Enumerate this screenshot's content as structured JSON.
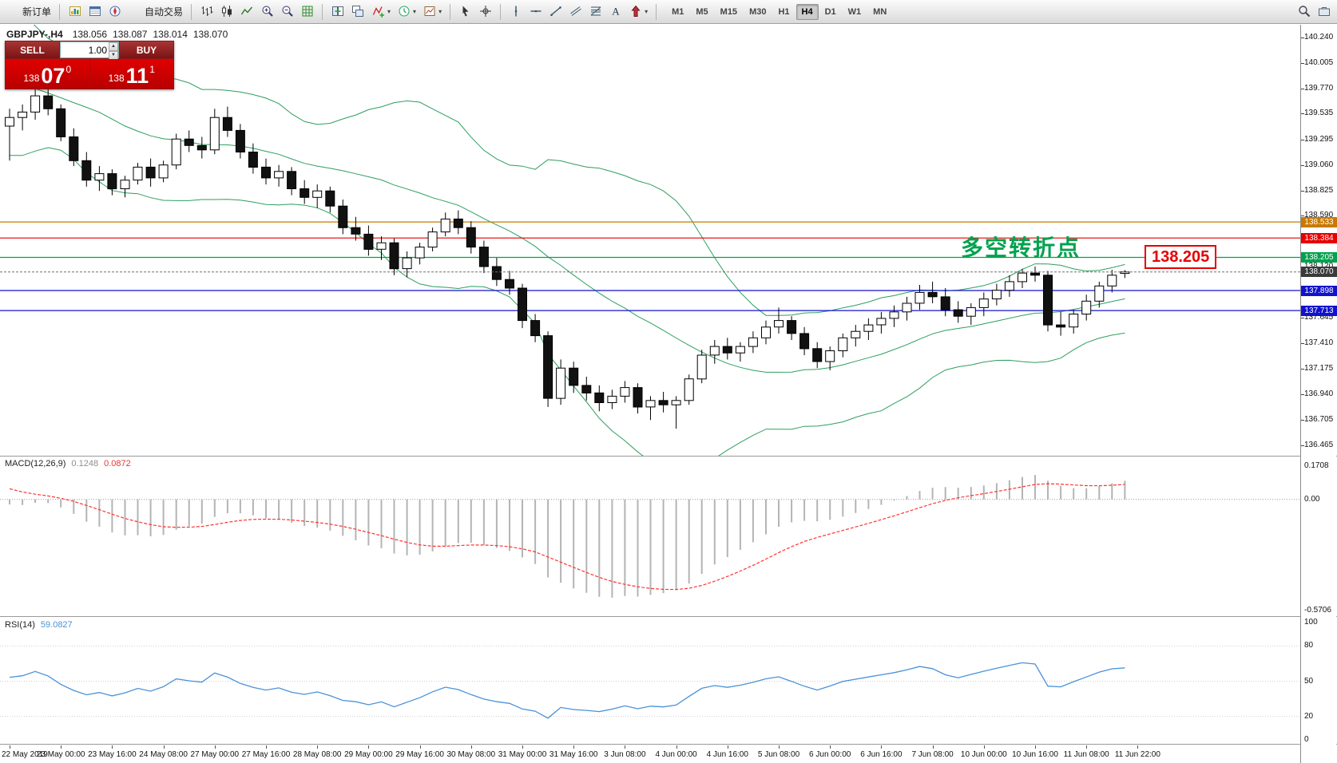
{
  "toolbar": {
    "new_order_label": "新订单",
    "autotrade_label": "自动交易",
    "left_icons": [
      "market-watch-icon",
      "data-window-icon",
      "navigator-icon"
    ],
    "chart_type_icons": [
      "bar-chart-icon",
      "candlestick-icon",
      "line-chart-icon"
    ],
    "zoom_icons": [
      "zoom-in-icon",
      "zoom-out-icon",
      "grid-icon"
    ],
    "window_icons": [
      "tile-windows-icon",
      "cascade-windows-icon"
    ],
    "dropdown_icons": [
      "indicators-icon",
      "periods-icon",
      "templates-icon"
    ],
    "cursor_icons": [
      "cursor-icon",
      "crosshair-icon"
    ],
    "draw_icons": [
      "vertical-line-icon",
      "horizontal-line-icon",
      "trendline-icon",
      "channel-icon",
      "fibonacci-icon",
      "text-icon",
      "arrows-icon"
    ],
    "timeframes": [
      "M1",
      "M5",
      "M15",
      "M30",
      "H1",
      "H4",
      "D1",
      "W1",
      "MN"
    ],
    "active_timeframe": "H4",
    "right_icons": [
      "search-icon",
      "toolbox-icon"
    ]
  },
  "symbol_info": {
    "name": "GBPJPY-,H4",
    "open": "138.056",
    "high": "138.087",
    "low": "138.014",
    "close": "138.070"
  },
  "trade_panel": {
    "sell_label": "SELL",
    "buy_label": "BUY",
    "volume": "1.00",
    "sell_price": {
      "prefix": "138",
      "big": "07",
      "sup": "0"
    },
    "buy_price": {
      "prefix": "138",
      "big": "11",
      "sup": "1"
    }
  },
  "annotation": {
    "text": "多空转折点",
    "color": "#00a24e"
  },
  "price_tag": {
    "text": "138.205"
  },
  "main_chart": {
    "price_ticks": [
      "140.240",
      "140.005",
      "139.770",
      "139.535",
      "139.295",
      "139.060",
      "138.825",
      "138.590",
      "138.355",
      "138.120",
      "137.885",
      "137.645",
      "137.410",
      "137.175",
      "136.940",
      "136.705",
      "136.465"
    ],
    "badges": [
      {
        "text": "138.533",
        "value": 138.533,
        "bg": "#c97a00"
      },
      {
        "text": "138.384",
        "value": 138.384,
        "bg": "#e60000"
      },
      {
        "text": "138.205",
        "value": 138.205,
        "bg": "#00a24e"
      },
      {
        "text": "138.070",
        "value": 138.07,
        "bg": "#3a3a3a"
      },
      {
        "text": "137.898",
        "value": 137.898,
        "bg": "#1212cc"
      },
      {
        "text": "137.713",
        "value": 137.713,
        "bg": "#1212cc"
      }
    ]
  },
  "macd": {
    "label": "MACD(12,26,9)",
    "main_value": "0.1248",
    "signal_value": "0.0872",
    "axis": [
      {
        "text": "0.1708",
        "value": 0.1708
      },
      {
        "text": "0.00",
        "value": 0
      },
      {
        "text": "-0.5706",
        "value": -0.5706
      }
    ]
  },
  "rsi": {
    "label": "RSI(14)",
    "value": "59.0827",
    "axis": [
      {
        "text": "100",
        "value": 100
      },
      {
        "text": "80",
        "value": 80
      },
      {
        "text": "50",
        "value": 50
      },
      {
        "text": "20",
        "value": 20
      },
      {
        "text": "0",
        "value": 0
      }
    ],
    "levels": [
      80,
      50,
      20
    ]
  },
  "chart_data": {
    "type": "candlestick",
    "symbol": "GBPJPY-",
    "timeframe": "H4",
    "ylim": [
      136.376,
      140.366
    ],
    "overlays": {
      "bollinger": {
        "period": 20,
        "deviation": 2,
        "color": "#2e9e5e"
      }
    },
    "macd_params": [
      12,
      26,
      9
    ],
    "rsi_period": 14,
    "hlines": [
      {
        "value": 138.533,
        "color": "#c97a00",
        "style": "solid"
      },
      {
        "value": 138.384,
        "color": "#e60000",
        "style": "solid"
      },
      {
        "value": 138.205,
        "color": "#00a24e",
        "style": "solid"
      },
      {
        "value": 137.898,
        "color": "#1212cc",
        "style": "solid"
      },
      {
        "value": 137.713,
        "color": "#1212cc",
        "style": "solid"
      }
    ],
    "bid_line": {
      "value": 138.07,
      "color": "#707070",
      "style": "dash"
    },
    "colors": {
      "bull": "#ffffff",
      "bear": "#111111",
      "wick": "#000000",
      "macd_hist": "#b4b4b4",
      "macd_signal": "#ff3333",
      "rsi_line": "#4a92d8"
    },
    "warmup_closes": [
      139.0,
      139.2,
      139.45,
      139.7,
      139.9,
      140.1,
      140.3,
      140.45,
      140.5,
      140.4,
      140.2,
      140.0,
      139.8,
      139.9,
      140.1,
      140.2,
      140.0,
      139.8,
      139.6,
      139.5,
      139.6,
      139.7,
      139.5,
      139.45,
      139.4,
      139.45
    ],
    "bars": [
      [
        139.42,
        139.58,
        139.1,
        139.5
      ],
      [
        139.5,
        139.62,
        139.38,
        139.55
      ],
      [
        139.55,
        139.78,
        139.48,
        139.7
      ],
      [
        139.7,
        139.78,
        139.52,
        139.58
      ],
      [
        139.58,
        139.62,
        139.28,
        139.32
      ],
      [
        139.32,
        139.4,
        139.05,
        139.1
      ],
      [
        139.1,
        139.18,
        138.86,
        138.92
      ],
      [
        138.92,
        139.05,
        138.82,
        138.98
      ],
      [
        138.98,
        139.02,
        138.78,
        138.84
      ],
      [
        138.84,
        138.96,
        138.76,
        138.92
      ],
      [
        138.92,
        139.08,
        138.88,
        139.04
      ],
      [
        139.04,
        139.12,
        138.86,
        138.94
      ],
      [
        138.94,
        139.1,
        138.9,
        139.06
      ],
      [
        139.06,
        139.35,
        139.02,
        139.3
      ],
      [
        139.3,
        139.38,
        139.18,
        139.24
      ],
      [
        139.24,
        139.32,
        139.12,
        139.2
      ],
      [
        139.2,
        139.58,
        139.16,
        139.5
      ],
      [
        139.5,
        139.6,
        139.32,
        139.38
      ],
      [
        139.38,
        139.44,
        139.12,
        139.18
      ],
      [
        139.18,
        139.26,
        138.98,
        139.04
      ],
      [
        139.04,
        139.12,
        138.88,
        138.94
      ],
      [
        138.94,
        139.06,
        138.86,
        139.0
      ],
      [
        139.0,
        139.04,
        138.78,
        138.84
      ],
      [
        138.84,
        138.92,
        138.7,
        138.76
      ],
      [
        138.76,
        138.88,
        138.66,
        138.82
      ],
      [
        138.82,
        138.86,
        138.62,
        138.68
      ],
      [
        138.68,
        138.74,
        138.42,
        138.48
      ],
      [
        138.48,
        138.58,
        138.36,
        138.42
      ],
      [
        138.42,
        138.5,
        138.22,
        138.28
      ],
      [
        138.28,
        138.4,
        138.18,
        138.34
      ],
      [
        138.34,
        138.38,
        138.04,
        138.1
      ],
      [
        138.1,
        138.26,
        138.02,
        138.2
      ],
      [
        138.2,
        138.34,
        138.14,
        138.3
      ],
      [
        138.3,
        138.48,
        138.26,
        138.44
      ],
      [
        138.44,
        138.62,
        138.4,
        138.56
      ],
      [
        138.56,
        138.64,
        138.42,
        138.48
      ],
      [
        138.48,
        138.54,
        138.24,
        138.3
      ],
      [
        138.3,
        138.36,
        138.06,
        138.12
      ],
      [
        138.12,
        138.2,
        137.94,
        138.0
      ],
      [
        138.0,
        138.08,
        137.86,
        137.92
      ],
      [
        137.92,
        137.96,
        137.55,
        137.62
      ],
      [
        137.62,
        137.68,
        137.42,
        137.48
      ],
      [
        137.48,
        137.52,
        136.82,
        136.9
      ],
      [
        136.9,
        137.26,
        136.84,
        137.18
      ],
      [
        137.18,
        137.24,
        136.95,
        137.02
      ],
      [
        137.02,
        137.1,
        136.88,
        136.95
      ],
      [
        136.95,
        137.02,
        136.78,
        136.86
      ],
      [
        136.86,
        136.98,
        136.8,
        136.92
      ],
      [
        136.92,
        137.06,
        136.86,
        137.0
      ],
      [
        137.0,
        137.04,
        136.76,
        136.82
      ],
      [
        136.82,
        136.92,
        136.7,
        136.88
      ],
      [
        136.88,
        136.96,
        136.77,
        136.84
      ],
      [
        136.84,
        136.92,
        136.62,
        136.88
      ],
      [
        136.88,
        137.12,
        136.84,
        137.08
      ],
      [
        137.08,
        137.35,
        137.04,
        137.3
      ],
      [
        137.3,
        137.44,
        137.22,
        137.38
      ],
      [
        137.38,
        137.46,
        137.26,
        137.32
      ],
      [
        137.32,
        137.42,
        137.24,
        137.38
      ],
      [
        137.38,
        137.52,
        137.32,
        137.46
      ],
      [
        137.46,
        137.62,
        137.4,
        137.56
      ],
      [
        137.56,
        137.74,
        137.5,
        137.62
      ],
      [
        137.62,
        137.66,
        137.44,
        137.5
      ],
      [
        137.5,
        137.56,
        137.3,
        137.36
      ],
      [
        137.36,
        137.42,
        137.18,
        137.24
      ],
      [
        137.24,
        137.38,
        137.16,
        137.34
      ],
      [
        137.34,
        137.5,
        137.28,
        137.46
      ],
      [
        137.46,
        137.58,
        137.38,
        137.52
      ],
      [
        137.52,
        137.64,
        137.44,
        137.58
      ],
      [
        137.58,
        137.7,
        137.5,
        137.64
      ],
      [
        137.64,
        137.76,
        137.56,
        137.7
      ],
      [
        137.7,
        137.84,
        137.62,
        137.78
      ],
      [
        137.78,
        137.95,
        137.72,
        137.88
      ],
      [
        137.88,
        137.98,
        137.78,
        137.84
      ],
      [
        137.84,
        137.92,
        137.66,
        137.72
      ],
      [
        137.72,
        137.8,
        137.6,
        137.66
      ],
      [
        137.66,
        137.78,
        137.58,
        137.74
      ],
      [
        137.74,
        137.88,
        137.66,
        137.82
      ],
      [
        137.82,
        137.96,
        137.76,
        137.9
      ],
      [
        137.9,
        138.04,
        137.84,
        137.98
      ],
      [
        137.98,
        138.1,
        137.92,
        138.06
      ],
      [
        138.06,
        138.12,
        137.98,
        138.04
      ],
      [
        138.04,
        138.08,
        137.52,
        137.58
      ],
      [
        137.58,
        137.7,
        137.48,
        137.56
      ],
      [
        137.56,
        137.72,
        137.5,
        137.68
      ],
      [
        137.68,
        137.86,
        137.62,
        137.8
      ],
      [
        137.8,
        137.98,
        137.74,
        137.94
      ],
      [
        137.94,
        138.09,
        137.88,
        138.04
      ],
      [
        138.056,
        138.087,
        138.014,
        138.07
      ]
    ],
    "time_axis": [
      {
        "bar": 0,
        "label": "22 May 2019"
      },
      {
        "bar": 4,
        "label": "23 May 00:00"
      },
      {
        "bar": 8,
        "label": "23 May 16:00"
      },
      {
        "bar": 12,
        "label": "24 May 08:00"
      },
      {
        "bar": 16,
        "label": "27 May 00:00"
      },
      {
        "bar": 20,
        "label": "27 May 16:00"
      },
      {
        "bar": 24,
        "label": "28 May 08:00"
      },
      {
        "bar": 28,
        "label": "29 May 00:00"
      },
      {
        "bar": 32,
        "label": "29 May 16:00"
      },
      {
        "bar": 36,
        "label": "30 May 08:00"
      },
      {
        "bar": 40,
        "label": "31 May 00:00"
      },
      {
        "bar": 44,
        "label": "31 May 16:00"
      },
      {
        "bar": 48,
        "label": "3 Jun 08:00"
      },
      {
        "bar": 52,
        "label": "4 Jun 00:00"
      },
      {
        "bar": 56,
        "label": "4 Jun 16:00"
      },
      {
        "bar": 60,
        "label": "5 Jun 08:00"
      },
      {
        "bar": 64,
        "label": "6 Jun 00:00"
      },
      {
        "bar": 68,
        "label": "6 Jun 16:00"
      },
      {
        "bar": 72,
        "label": "7 Jun 08:00"
      },
      {
        "bar": 76,
        "label": "10 Jun 00:00"
      },
      {
        "bar": 80,
        "label": "10 Jun 16:00"
      },
      {
        "bar": 84,
        "label": "11 Jun 08:00"
      },
      {
        "bar": 88,
        "label": "11 Jun 22:00"
      }
    ]
  }
}
